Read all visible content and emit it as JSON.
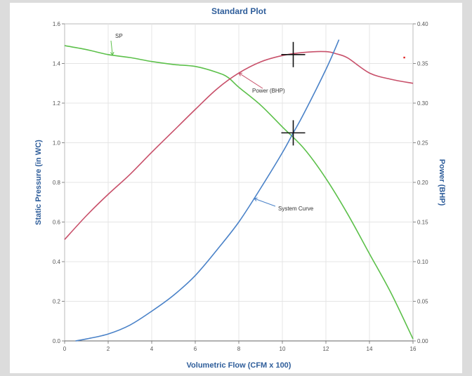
{
  "chart_data": {
    "type": "line",
    "title": "Standard Plot",
    "xlabel": "Volumetric Flow (CFM x 100)",
    "ylabel_left": "Static Pressure (in WC)",
    "ylabel_right": "Power (BHP)",
    "xlim": [
      0,
      16
    ],
    "ylim_left": [
      0,
      1.6
    ],
    "ylim_right": [
      0,
      0.4
    ],
    "x_ticks": [
      "0",
      "2",
      "4",
      "6",
      "8",
      "10",
      "12",
      "14",
      "16"
    ],
    "y_left_ticks": [
      "0.0",
      "0.2",
      "0.4",
      "0.6",
      "0.8",
      "1.0",
      "1.2",
      "1.4",
      "1.6"
    ],
    "y_right_ticks": [
      "0.00",
      "0.05",
      "0.10",
      "0.15",
      "0.20",
      "0.25",
      "0.30",
      "0.35",
      "0.40"
    ],
    "grid": true,
    "series": [
      {
        "name": "SP",
        "axis": "left",
        "color": "#5cc04a",
        "x": [
          0,
          1,
          2,
          3,
          4,
          5,
          6,
          7,
          7.5,
          8,
          9,
          10,
          11,
          12,
          13,
          14,
          15,
          16
        ],
        "y": [
          1.49,
          1.47,
          1.445,
          1.43,
          1.41,
          1.395,
          1.385,
          1.355,
          1.33,
          1.28,
          1.19,
          1.08,
          0.97,
          0.82,
          0.64,
          0.44,
          0.24,
          0.01
        ]
      },
      {
        "name": "Power (BHP)",
        "axis": "right",
        "color": "#c8506a",
        "x": [
          0,
          1,
          2,
          3,
          4,
          5,
          6,
          7,
          8,
          9,
          10,
          11,
          12,
          12.5,
          13,
          14,
          15,
          16
        ],
        "y": [
          0.128,
          0.158,
          0.185,
          0.21,
          0.238,
          0.265,
          0.292,
          0.318,
          0.338,
          0.352,
          0.36,
          0.364,
          0.365,
          0.362,
          0.357,
          0.338,
          0.33,
          0.325
        ]
      },
      {
        "name": "System Curve",
        "axis": "left",
        "color": "#4a82c8",
        "x": [
          0.5,
          1,
          2,
          3,
          4,
          5,
          6,
          7,
          8,
          9,
          10,
          10.5,
          11,
          12,
          12.6
        ],
        "y": [
          0,
          0.01,
          0.035,
          0.08,
          0.15,
          0.23,
          0.33,
          0.46,
          0.6,
          0.77,
          0.95,
          1.05,
          1.15,
          1.37,
          1.52
        ]
      }
    ],
    "annotations": [
      {
        "label": "SP",
        "series": 0
      },
      {
        "label": "Power (BHP)",
        "series": 1
      },
      {
        "label": "System Curve",
        "series": 2
      }
    ],
    "operating_points": [
      {
        "x": 10.5,
        "y": 1.05,
        "axis": "left"
      },
      {
        "x": 10.5,
        "y": 1.445,
        "axis": "left"
      }
    ],
    "marker_point": {
      "x": 15.6,
      "y": 1.43,
      "color": "#e02020"
    }
  }
}
